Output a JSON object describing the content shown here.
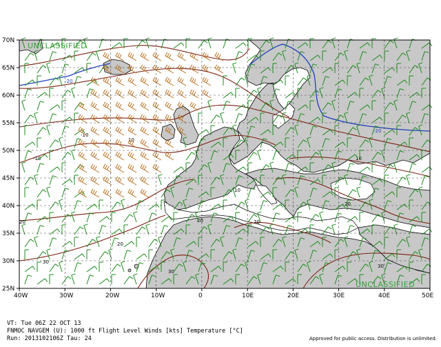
{
  "classification": "UNCLASSIFIED",
  "lat_labels": [
    "70N",
    "65N",
    "60N",
    "55N",
    "50N",
    "45N",
    "40N",
    "35N",
    "30N",
    "25N"
  ],
  "lon_labels": [
    "40W",
    "30W",
    "20W",
    "10W",
    "0",
    "10E",
    "20E",
    "30E",
    "40E",
    "50E"
  ],
  "isotherm_labels": [
    "-10",
    "10",
    "-10",
    "10",
    "20",
    "20",
    "30",
    "30",
    "20",
    "10",
    "20",
    "20",
    "30"
  ],
  "cold_labels": [
    "-20",
    "-20"
  ],
  "footer": {
    "vt": "VT: Tue 06Z 22 OCT 13",
    "model": "FNMOC NAVGEM (U): 1000 ft Flight Level Winds [kts] Temperature [°C]",
    "run": "Run: 2013102106Z Tau: 24",
    "approval": "Approved for public access. Distribution is unlimited."
  },
  "colors": {
    "land": "#c8c8c8",
    "isotherm": "#7a1f10",
    "isotherm_cold": "#1f3fbf",
    "barb_weak": "#1b8a1b",
    "barb_strong": "#b86d1a",
    "classification": "#33a033"
  }
}
